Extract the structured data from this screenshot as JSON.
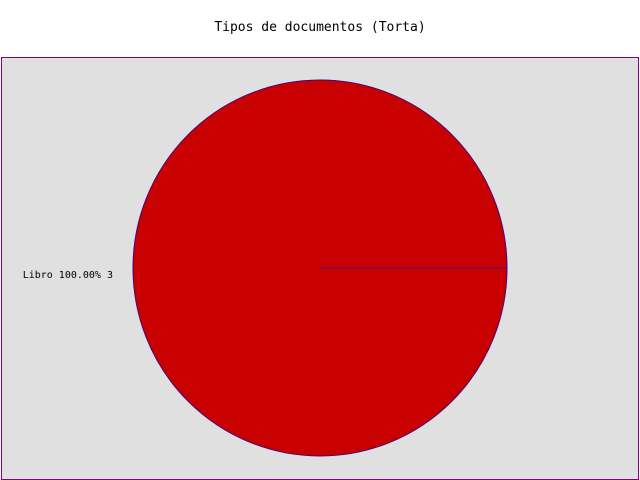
{
  "chart_data": {
    "type": "pie",
    "title": "Tipos de documentos (Torta)",
    "slices": [
      {
        "label": "Libro",
        "percent_text": "100.00%",
        "count": 3,
        "value": 3,
        "color": "#c80000",
        "full_label": "Libro 100.00% 3"
      }
    ],
    "background_color": "#e0e0e0",
    "border_color": "#800080",
    "edge_color": "#4b0082"
  }
}
